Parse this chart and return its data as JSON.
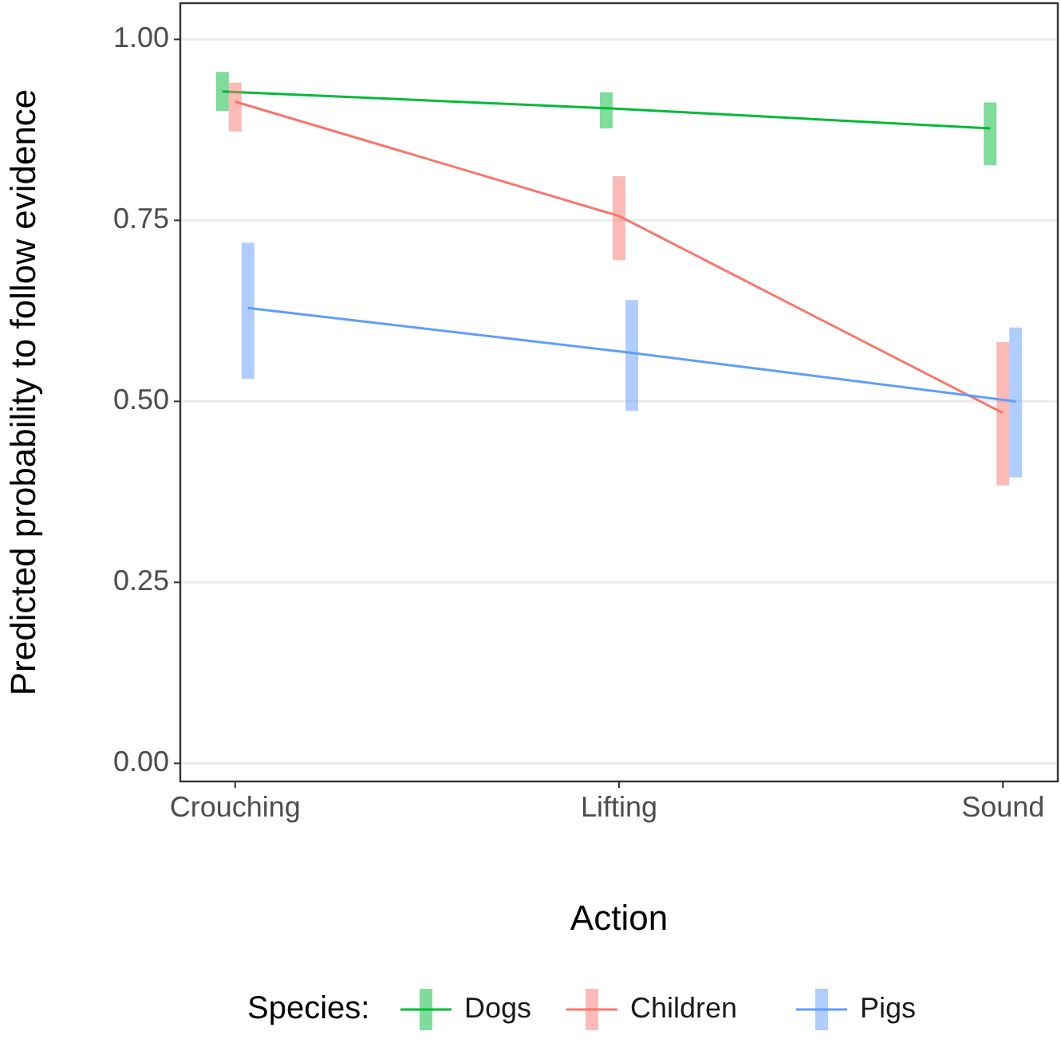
{
  "chart_data": {
    "type": "line",
    "xlabel": "Action",
    "ylabel": "Predicted probability to follow evidence",
    "legend_title": "Species:",
    "categories": [
      "Crouching",
      "Lifting",
      "Sound"
    ],
    "ylim": [
      -0.025,
      1.05
    ],
    "yticks": [
      {
        "value": 0,
        "label": "0.00"
      },
      {
        "value": 0.25,
        "label": "0.25"
      },
      {
        "value": 0.5,
        "label": "0.50"
      },
      {
        "value": 0.75,
        "label": "0.75"
      },
      {
        "value": 1,
        "label": "1.00"
      }
    ],
    "grid": "y",
    "legend": "bottom",
    "line_style": "solid",
    "series": [
      {
        "name": "Dogs",
        "color": "#00ba38",
        "values": [
          0.928,
          0.905,
          0.877
        ],
        "errors": [
          [
            0.901,
            0.955
          ],
          [
            0.877,
            0.927
          ],
          [
            0.826,
            0.913
          ]
        ]
      },
      {
        "name": "Children",
        "color": "#f8766d",
        "values": [
          0.914,
          0.756,
          0.484
        ],
        "errors": [
          [
            0.873,
            0.94
          ],
          [
            0.695,
            0.811
          ],
          [
            0.384,
            0.582
          ]
        ]
      },
      {
        "name": "Pigs",
        "color": "#619cff",
        "values": [
          0.629,
          0.567,
          0.5
        ],
        "errors": [
          [
            0.531,
            0.719
          ],
          [
            0.487,
            0.64
          ],
          [
            0.395,
            0.602
          ]
        ]
      }
    ]
  }
}
